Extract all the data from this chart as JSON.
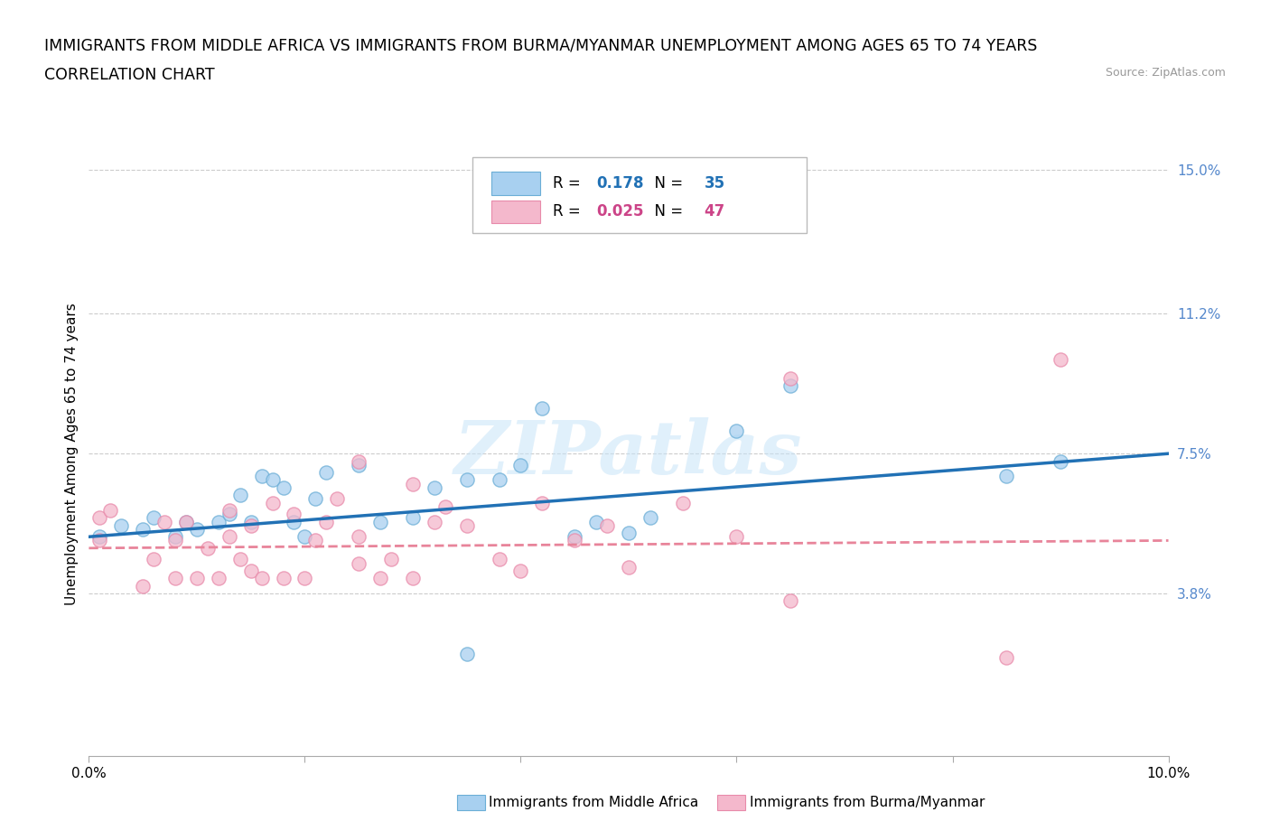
{
  "title_line1": "IMMIGRANTS FROM MIDDLE AFRICA VS IMMIGRANTS FROM BURMA/MYANMAR UNEMPLOYMENT AMONG AGES 65 TO 74 YEARS",
  "title_line2": "CORRELATION CHART",
  "source_text": "Source: ZipAtlas.com",
  "ylabel": "Unemployment Among Ages 65 to 74 years",
  "xlim": [
    0.0,
    0.1
  ],
  "ylim": [
    -0.005,
    0.155
  ],
  "ytick_vals": [
    0.038,
    0.075,
    0.112,
    0.15
  ],
  "ytick_labels": [
    "3.8%",
    "7.5%",
    "11.2%",
    "15.0%"
  ],
  "xtick_vals": [
    0.0,
    0.02,
    0.04,
    0.06,
    0.08,
    0.1
  ],
  "xtick_labels": [
    "0.0%",
    "",
    "",
    "",
    "",
    "10.0%"
  ],
  "blue_R": "0.178",
  "blue_N": "35",
  "pink_R": "0.025",
  "pink_N": "47",
  "blue_fill": "#a8d0f0",
  "pink_fill": "#f4b8cc",
  "blue_edge": "#6baed6",
  "pink_edge": "#e88aaa",
  "blue_line_color": "#2171b5",
  "pink_line_color": "#e8849a",
  "legend_label_blue": "Immigrants from Middle Africa",
  "legend_label_pink": "Immigrants from Burma/Myanmar",
  "blue_scatter_x": [
    0.001,
    0.003,
    0.005,
    0.006,
    0.008,
    0.009,
    0.01,
    0.012,
    0.013,
    0.014,
    0.015,
    0.016,
    0.017,
    0.018,
    0.019,
    0.02,
    0.021,
    0.022,
    0.025,
    0.027,
    0.03,
    0.032,
    0.035,
    0.038,
    0.04,
    0.042,
    0.045,
    0.047,
    0.05,
    0.052,
    0.06,
    0.065,
    0.035,
    0.085,
    0.09
  ],
  "blue_scatter_y": [
    0.053,
    0.056,
    0.055,
    0.058,
    0.053,
    0.057,
    0.055,
    0.057,
    0.059,
    0.064,
    0.057,
    0.069,
    0.068,
    0.066,
    0.057,
    0.053,
    0.063,
    0.07,
    0.072,
    0.057,
    0.058,
    0.066,
    0.068,
    0.068,
    0.072,
    0.087,
    0.053,
    0.057,
    0.054,
    0.058,
    0.081,
    0.093,
    0.022,
    0.069,
    0.073
  ],
  "pink_scatter_x": [
    0.001,
    0.001,
    0.002,
    0.005,
    0.006,
    0.007,
    0.008,
    0.008,
    0.009,
    0.01,
    0.011,
    0.012,
    0.013,
    0.013,
    0.014,
    0.015,
    0.015,
    0.016,
    0.017,
    0.018,
    0.019,
    0.02,
    0.021,
    0.022,
    0.023,
    0.025,
    0.025,
    0.027,
    0.028,
    0.03,
    0.032,
    0.033,
    0.035,
    0.038,
    0.04,
    0.042,
    0.045,
    0.048,
    0.05,
    0.055,
    0.06,
    0.065,
    0.065,
    0.085,
    0.09,
    0.025,
    0.03
  ],
  "pink_scatter_y": [
    0.052,
    0.058,
    0.06,
    0.04,
    0.047,
    0.057,
    0.042,
    0.052,
    0.057,
    0.042,
    0.05,
    0.042,
    0.053,
    0.06,
    0.047,
    0.044,
    0.056,
    0.042,
    0.062,
    0.042,
    0.059,
    0.042,
    0.052,
    0.057,
    0.063,
    0.046,
    0.053,
    0.042,
    0.047,
    0.042,
    0.057,
    0.061,
    0.056,
    0.047,
    0.044,
    0.062,
    0.052,
    0.056,
    0.045,
    0.062,
    0.053,
    0.095,
    0.036,
    0.021,
    0.1,
    0.073,
    0.067
  ],
  "blue_trend_x0": 0.0,
  "blue_trend_x1": 0.1,
  "blue_trend_y0": 0.053,
  "blue_trend_y1": 0.075,
  "pink_trend_x0": 0.0,
  "pink_trend_x1": 0.1,
  "pink_trend_y0": 0.05,
  "pink_trend_y1": 0.052,
  "watermark": "ZIPatlas",
  "bg_color": "#ffffff",
  "grid_color": "#cccccc",
  "tick_label_color": "#5588cc",
  "title_fontsize": 12.5,
  "tick_fontsize": 11,
  "ylabel_fontsize": 11
}
